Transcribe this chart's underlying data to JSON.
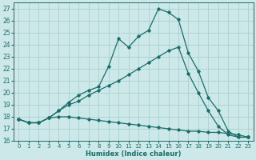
{
  "xlabel": "Humidex (Indice chaleur)",
  "background_color": "#cce8e8",
  "grid_color": "#aacfcf",
  "line_color": "#1a6e6a",
  "xlim": [
    -0.5,
    23.5
  ],
  "ylim": [
    16,
    27.5
  ],
  "yticks": [
    16,
    17,
    18,
    19,
    20,
    21,
    22,
    23,
    24,
    25,
    26,
    27
  ],
  "xticks": [
    0,
    1,
    2,
    3,
    4,
    5,
    6,
    7,
    8,
    9,
    10,
    11,
    12,
    13,
    14,
    15,
    16,
    17,
    18,
    19,
    20,
    21,
    22,
    23
  ],
  "series1_x": [
    0,
    1,
    2,
    3,
    4,
    5,
    6,
    7,
    8,
    9,
    10,
    11,
    12,
    13,
    14,
    15,
    16,
    17,
    18,
    19,
    20,
    21,
    22,
    23
  ],
  "series1_y": [
    17.8,
    17.5,
    17.5,
    17.9,
    18.5,
    19.2,
    19.8,
    20.2,
    20.5,
    22.2,
    24.5,
    23.8,
    24.7,
    25.2,
    27.0,
    26.7,
    26.1,
    23.3,
    21.8,
    19.6,
    18.5,
    16.8,
    16.3,
    16.3
  ],
  "series2_x": [
    0,
    1,
    2,
    3,
    4,
    5,
    6,
    7,
    8,
    9,
    10,
    11,
    12,
    13,
    14,
    15,
    16,
    17,
    18,
    19,
    20,
    21,
    22,
    23
  ],
  "series2_y": [
    17.8,
    17.5,
    17.5,
    17.9,
    18.5,
    19.0,
    19.3,
    19.8,
    20.2,
    20.6,
    21.0,
    21.5,
    22.0,
    22.5,
    23.0,
    23.5,
    23.8,
    21.6,
    20.0,
    18.5,
    17.2,
    16.5,
    16.3,
    16.3
  ],
  "series3_x": [
    0,
    1,
    2,
    3,
    4,
    5,
    6,
    7,
    8,
    9,
    10,
    11,
    12,
    13,
    14,
    15,
    16,
    17,
    18,
    19,
    20,
    21,
    22,
    23
  ],
  "series3_y": [
    17.8,
    17.5,
    17.5,
    17.9,
    18.0,
    18.0,
    17.9,
    17.8,
    17.7,
    17.6,
    17.5,
    17.4,
    17.3,
    17.2,
    17.1,
    17.0,
    16.9,
    16.8,
    16.8,
    16.7,
    16.7,
    16.6,
    16.5,
    16.3
  ]
}
